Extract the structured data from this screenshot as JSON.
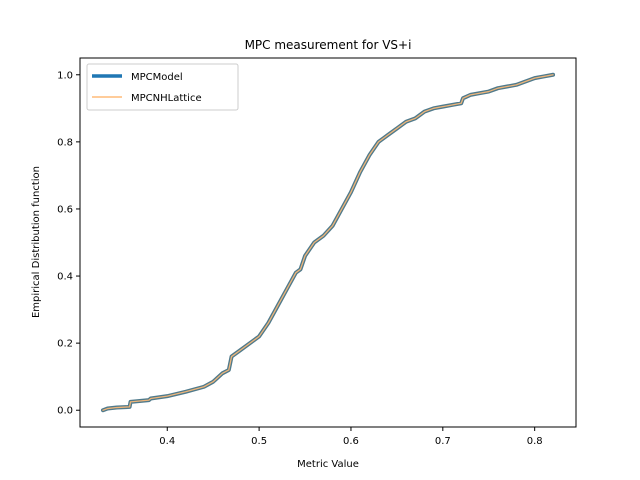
{
  "chart_data": {
    "type": "line",
    "title": "MPC measurement for VS+i",
    "xlabel": "Metric Value",
    "ylabel": "Empirical Distribution function",
    "xlim": [
      0.305,
      0.845
    ],
    "ylim": [
      -0.05,
      1.05
    ],
    "xticks": [
      0.4,
      0.5,
      0.6,
      0.7,
      0.8
    ],
    "xtick_labels": [
      "0.4",
      "0.5",
      "0.6",
      "0.7",
      "0.8"
    ],
    "yticks": [
      0.0,
      0.2,
      0.4,
      0.6,
      0.8,
      1.0
    ],
    "ytick_labels": [
      "0.0",
      "0.2",
      "0.4",
      "0.6",
      "0.8",
      "1.0"
    ],
    "grid": false,
    "legend_position": "top-left",
    "series": [
      {
        "name": "MPCModel",
        "color": "#1f77b4",
        "style": "thick",
        "x": [
          0.33,
          0.335,
          0.345,
          0.359,
          0.36,
          0.38,
          0.382,
          0.4,
          0.42,
          0.44,
          0.45,
          0.46,
          0.467,
          0.47,
          0.48,
          0.5,
          0.51,
          0.52,
          0.53,
          0.54,
          0.545,
          0.55,
          0.56,
          0.57,
          0.58,
          0.59,
          0.6,
          0.61,
          0.62,
          0.63,
          0.64,
          0.65,
          0.66,
          0.67,
          0.68,
          0.69,
          0.7,
          0.71,
          0.72,
          0.722,
          0.73,
          0.74,
          0.75,
          0.76,
          0.77,
          0.78,
          0.79,
          0.8,
          0.81,
          0.82
        ],
        "y": [
          0.0,
          0.005,
          0.008,
          0.01,
          0.025,
          0.03,
          0.035,
          0.042,
          0.055,
          0.07,
          0.085,
          0.11,
          0.12,
          0.16,
          0.18,
          0.22,
          0.26,
          0.31,
          0.36,
          0.41,
          0.42,
          0.46,
          0.5,
          0.52,
          0.55,
          0.6,
          0.65,
          0.71,
          0.76,
          0.8,
          0.82,
          0.84,
          0.86,
          0.87,
          0.89,
          0.9,
          0.905,
          0.91,
          0.915,
          0.93,
          0.94,
          0.945,
          0.95,
          0.96,
          0.965,
          0.97,
          0.98,
          0.99,
          0.995,
          1.0
        ]
      },
      {
        "name": "MPCNHLattice",
        "color": "#ffbb78",
        "style": "thin",
        "x": [
          0.33,
          0.335,
          0.345,
          0.359,
          0.36,
          0.38,
          0.382,
          0.4,
          0.42,
          0.44,
          0.45,
          0.46,
          0.467,
          0.47,
          0.48,
          0.5,
          0.51,
          0.52,
          0.53,
          0.54,
          0.545,
          0.55,
          0.56,
          0.57,
          0.58,
          0.59,
          0.6,
          0.61,
          0.62,
          0.63,
          0.64,
          0.65,
          0.66,
          0.67,
          0.68,
          0.69,
          0.7,
          0.71,
          0.72,
          0.722,
          0.73,
          0.74,
          0.75,
          0.76,
          0.77,
          0.78,
          0.79,
          0.8,
          0.81,
          0.82
        ],
        "y": [
          0.0,
          0.005,
          0.008,
          0.01,
          0.025,
          0.03,
          0.035,
          0.042,
          0.055,
          0.07,
          0.085,
          0.11,
          0.12,
          0.16,
          0.18,
          0.22,
          0.26,
          0.31,
          0.36,
          0.41,
          0.42,
          0.46,
          0.5,
          0.52,
          0.55,
          0.6,
          0.65,
          0.71,
          0.76,
          0.8,
          0.82,
          0.84,
          0.86,
          0.87,
          0.89,
          0.9,
          0.905,
          0.91,
          0.915,
          0.93,
          0.94,
          0.945,
          0.95,
          0.96,
          0.965,
          0.97,
          0.98,
          0.99,
          0.995,
          1.0
        ]
      }
    ]
  }
}
